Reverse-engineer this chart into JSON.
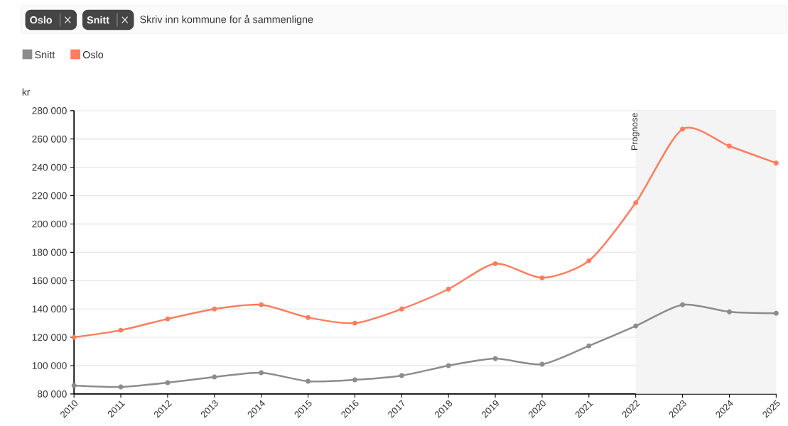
{
  "chart_data": {
    "type": "line",
    "ylabel": "kr",
    "annotations": [
      "Oslo",
      "Snitt",
      "Skriv inn kommune for å sammenligne"
    ],
    "x": [
      2010,
      2011,
      2012,
      2013,
      2014,
      2015,
      2016,
      2017,
      2018,
      2019,
      2020,
      2021,
      2022,
      2023,
      2024,
      2025
    ],
    "series": [
      {
        "name": "Snitt",
        "color": "#8c8c8c",
        "values": [
          86000,
          85000,
          88000,
          92000,
          95000,
          89000,
          90000,
          93000,
          100000,
          105000,
          101000,
          114000,
          128000,
          143000,
          138000,
          137000
        ]
      },
      {
        "name": "Oslo",
        "color": "#ff7c5c",
        "values": [
          120000,
          125000,
          133000,
          140000,
          143000,
          134000,
          130000,
          140000,
          154000,
          172000,
          162000,
          174000,
          215000,
          267000,
          255000,
          243000
        ]
      }
    ],
    "xlim": [
      2010,
      2025
    ],
    "xticks": [
      2010,
      2011,
      2012,
      2013,
      2014,
      2015,
      2016,
      2017,
      2018,
      2019,
      2020,
      2021,
      2022,
      2023,
      2024,
      2025
    ],
    "ylim": [
      80000,
      280000
    ],
    "yticks": [
      {
        "value": 80000,
        "label": "80 000"
      },
      {
        "value": 100000,
        "label": "100 000"
      },
      {
        "value": 120000,
        "label": "120 000"
      },
      {
        "value": 140000,
        "label": "140 000"
      },
      {
        "value": 160000,
        "label": "160 000"
      },
      {
        "value": 180000,
        "label": "180 000"
      },
      {
        "value": 200000,
        "label": "200 000"
      },
      {
        "value": 220000,
        "label": "220 000"
      },
      {
        "value": 240000,
        "label": "240 000"
      },
      {
        "value": 260000,
        "label": "260 000"
      },
      {
        "value": 280000,
        "label": "280 000"
      }
    ],
    "bands": [
      {
        "axis": "x",
        "from": 2022,
        "to": 2025,
        "label": "Prognose",
        "color": "#f3f4f3"
      }
    ],
    "grid": "y",
    "legend": "top left",
    "marker": "circle",
    "line_style": "solid"
  }
}
